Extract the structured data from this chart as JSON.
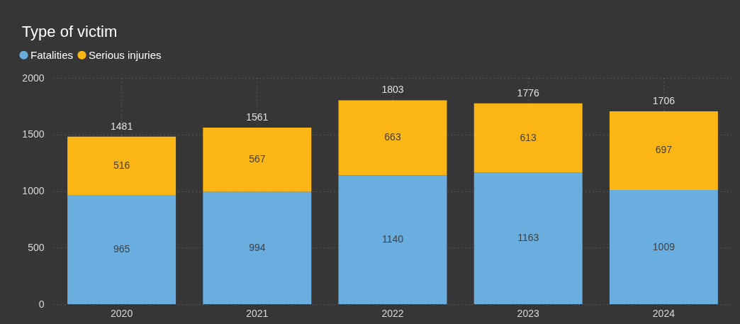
{
  "chart_data": {
    "type": "bar",
    "title": "Type of victim",
    "stacked": true,
    "categories": [
      "2020",
      "2021",
      "2022",
      "2023",
      "2024"
    ],
    "series": [
      {
        "name": "Fatalities",
        "color": "#6aaee0",
        "values": [
          965,
          994,
          1140,
          1163,
          1009
        ]
      },
      {
        "name": "Serious injuries",
        "color": "#fbb514",
        "values": [
          516,
          567,
          663,
          613,
          697
        ]
      }
    ],
    "totals": [
      "1481",
      "1561",
      "1803",
      "1776",
      "1706"
    ],
    "ylim": [
      0,
      2000
    ],
    "yticks": [
      0,
      500,
      1000,
      1500,
      2000
    ],
    "grid": true,
    "legend": "top left",
    "data_labels": true
  }
}
